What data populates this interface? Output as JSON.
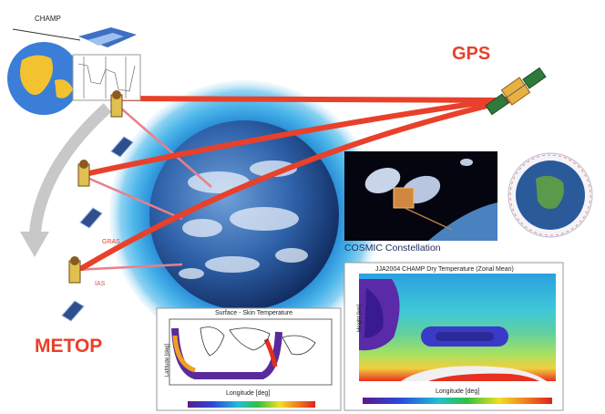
{
  "labels": {
    "champ": "CHAMP",
    "gps": "GPS",
    "metop": "METOP",
    "cosmic": "COSMIC Constellation",
    "small_red_1": "GRAS",
    "small_red_2": "IAS"
  },
  "skin_panel": {
    "title": "Surface - Skin Temperature",
    "xlabel": "Longitude [deg]",
    "ylabel": "Latitude [deg]"
  },
  "dry_panel": {
    "title": "JJA2004 CHAMP Dry Temperature (Zonal Mean)",
    "xlabel": "Longitude [deg]",
    "ylabel": "Height [km]"
  },
  "colors": {
    "accent_red": "#e8402a",
    "ray_red": "#e8402a",
    "ocean_blue": "#1a4f9a",
    "halo_blue": "#2aa8e0",
    "arrow_grey": "#c8c8c8"
  },
  "icons": [
    "globe-icon",
    "champ-satellite-icon",
    "gps-satellite-icon",
    "metop-satellite-icon",
    "solar-panel-icon",
    "earth-icon",
    "cosmic-satellite-icon",
    "orbit-globe-icon"
  ]
}
